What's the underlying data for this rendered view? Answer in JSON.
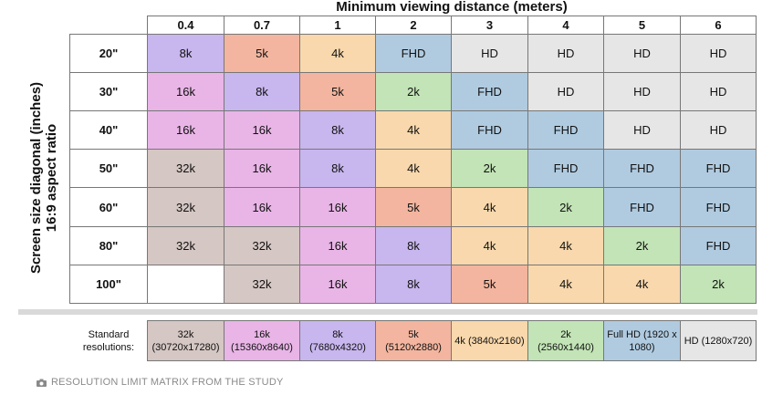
{
  "title": "Minimum viewing distance (meters)",
  "y_title_line1": "Screen size diagonal (inches)",
  "y_title_line2": "16:9 aspect ratio",
  "colors": {
    "32k": "#d5c7c3",
    "16k": "#e8b5e6",
    "8k": "#c8b6ee",
    "5k": "#f3b59f",
    "4k": "#f8d8ac",
    "2k": "#c2e4b6",
    "FHD": "#b0cbe0",
    "HD": "#e6e6e6",
    "": "#ffffff"
  },
  "chart_data": {
    "type": "table",
    "title": "Minimum viewing distance (meters)",
    "columns": [
      "0.4",
      "0.7",
      "1",
      "2",
      "3",
      "4",
      "5",
      "6"
    ],
    "rows": [
      {
        "label": "20\"",
        "values": [
          "8k",
          "5k",
          "4k",
          "FHD",
          "HD",
          "HD",
          "HD",
          "HD"
        ]
      },
      {
        "label": "30\"",
        "values": [
          "16k",
          "8k",
          "5k",
          "2k",
          "FHD",
          "HD",
          "HD",
          "HD"
        ]
      },
      {
        "label": "40\"",
        "values": [
          "16k",
          "16k",
          "8k",
          "4k",
          "FHD",
          "FHD",
          "HD",
          "HD"
        ]
      },
      {
        "label": "50\"",
        "values": [
          "32k",
          "16k",
          "8k",
          "4k",
          "2k",
          "FHD",
          "FHD",
          "FHD"
        ]
      },
      {
        "label": "60\"",
        "values": [
          "32k",
          "16k",
          "16k",
          "5k",
          "4k",
          "2k",
          "FHD",
          "FHD"
        ]
      },
      {
        "label": "80\"",
        "values": [
          "32k",
          "32k",
          "16k",
          "8k",
          "4k",
          "4k",
          "2k",
          "FHD"
        ]
      },
      {
        "label": "100\"",
        "values": [
          "",
          "32k",
          "16k",
          "8k",
          "5k",
          "4k",
          "4k",
          "2k"
        ]
      }
    ]
  },
  "legend": {
    "label": "Standard resolutions:",
    "items": [
      {
        "key": "32k",
        "text": "32k (30720x17280)"
      },
      {
        "key": "16k",
        "text": "16k (15360x8640)"
      },
      {
        "key": "8k",
        "text": "8k (7680x4320)"
      },
      {
        "key": "5k",
        "text": "5k (5120x2880)"
      },
      {
        "key": "4k",
        "text": "4k (3840x2160)"
      },
      {
        "key": "2k",
        "text": "2k (2560x1440)"
      },
      {
        "key": "FHD",
        "text": "Full HD (1920 x 1080)"
      },
      {
        "key": "HD",
        "text": "HD (1280x720)"
      }
    ]
  },
  "caption": "RESOLUTION LIMIT MATRIX FROM THE STUDY",
  "caption_icon": "camera-icon"
}
